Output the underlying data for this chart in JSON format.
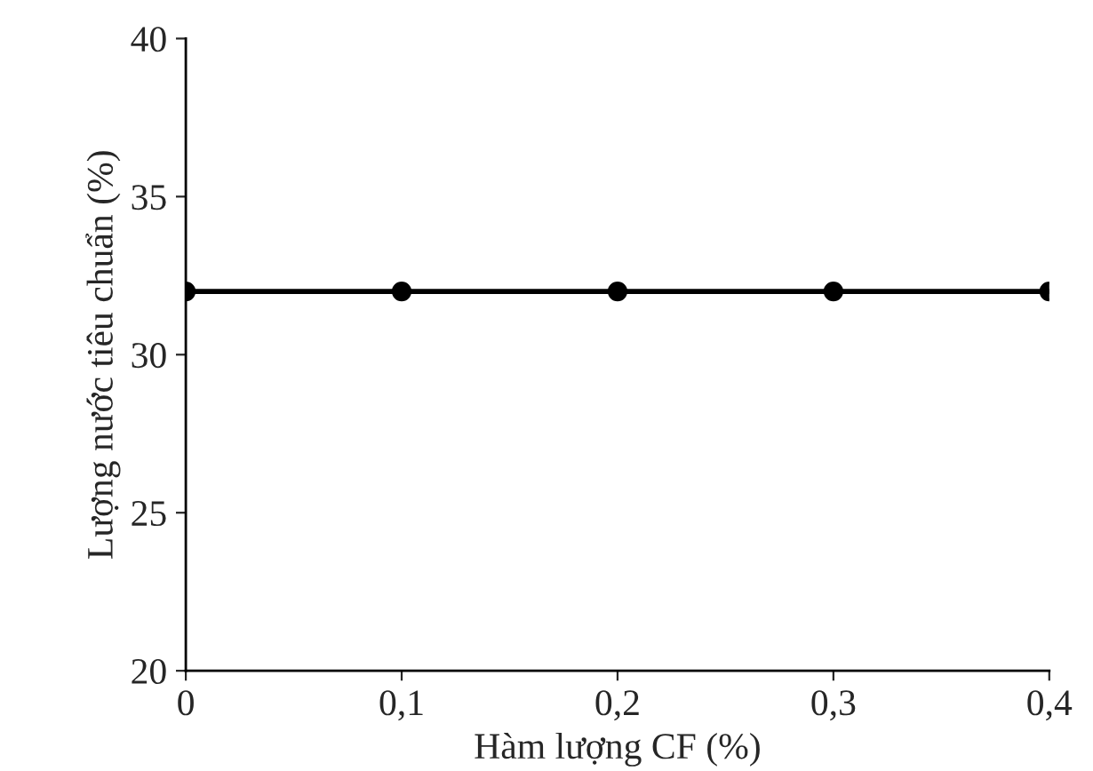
{
  "chart_data": {
    "type": "line",
    "xlabel": "Hàm lượng CF (%)",
    "ylabel": "Lượng nước tiêu chuẩn (%)",
    "x": [
      0,
      0.1,
      0.2,
      0.3,
      0.4
    ],
    "series": [
      {
        "color": "#000000",
        "values": [
          32,
          32,
          32,
          32,
          32
        ]
      }
    ],
    "xlim": [
      0,
      0.4
    ],
    "ylim": [
      20,
      40
    ],
    "xticks": [
      0,
      {
        "value": 0.1,
        "label": "0,1"
      },
      {
        "value": 0.2,
        "label": "0,2"
      },
      {
        "value": 0.3,
        "label": "0,3"
      },
      {
        "value": 0.4,
        "label": "0,4"
      }
    ],
    "yticks": [
      20,
      25,
      30,
      35,
      40
    ],
    "grid": false,
    "legend": false,
    "marker": "circle",
    "line_style": "solid"
  }
}
